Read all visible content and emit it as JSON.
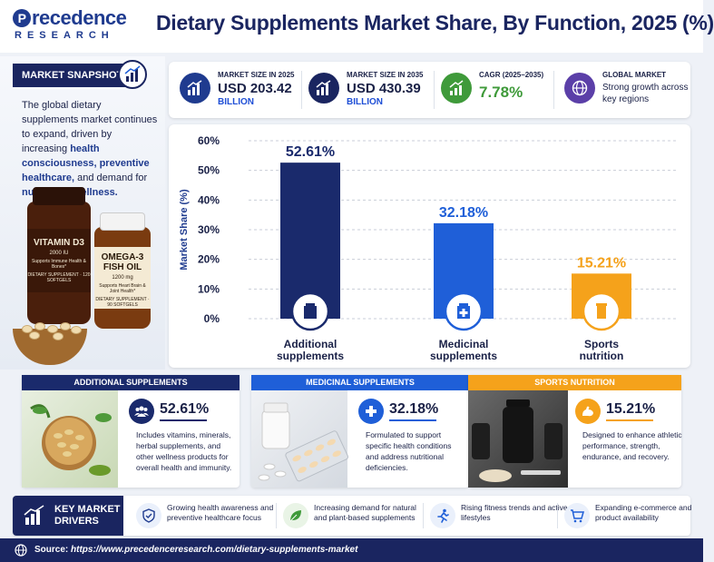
{
  "header": {
    "logo_main": "recedence",
    "logo_initial": "P",
    "logo_sub": "RESEARCH",
    "title": "Dietary Supplements Market Share, By Function, 2025 (%)"
  },
  "snapshot": {
    "heading": "MARKET SNAPSHOT",
    "text_1": "The global dietary supplements market continues to expand, driven by increasing ",
    "highlight_1": "health consciousness, preventive healthcare,",
    "text_2": " and demand for ",
    "highlight_2": "nutritional wellness.",
    "bottle_1": {
      "name": "VITAMIN D3",
      "dose": "2000 IU",
      "claim": "Supports Immune Health & Bones*",
      "info": "DIETARY SUPPLEMENT · 120 SOFTGELS"
    },
    "bottle_2": {
      "name": "OMEGA-3",
      "name_2": "FISH OIL",
      "dose": "1200 mg",
      "claim": "Supports Heart Brain & Joint Health*",
      "info": "DIETARY SUPPLEMENT · 90 SOFTGELS"
    }
  },
  "kpis": [
    {
      "label": "MARKET SIZE IN 2025",
      "value": "USD 203.42",
      "sub": "BILLION",
      "icon": "bar-growth-icon",
      "color": "#1f3b8f"
    },
    {
      "label": "MARKET SIZE IN 2035",
      "value": "USD 430.39",
      "sub": "BILLION",
      "icon": "bar-growth-icon",
      "color": "#1a2560"
    },
    {
      "label": "CAGR (2025–2035)",
      "value": "7.78%",
      "icon": "trend-up-icon",
      "color": "#3f9a3a"
    },
    {
      "label": "GLOBAL MARKET",
      "desc": "Strong growth across key regions",
      "icon": "globe-icon",
      "color": "#5b3fa8"
    }
  ],
  "chart_data": {
    "type": "bar",
    "categories": [
      "Additional supplements",
      "Medicinal supplements",
      "Sports nutrition"
    ],
    "category_lines": [
      [
        "Additional",
        "supplements"
      ],
      [
        "Medicinal",
        "supplements"
      ],
      [
        "Sports",
        "nutrition"
      ]
    ],
    "values": [
      52.61,
      32.18,
      15.21
    ],
    "value_labels": [
      "52.61%",
      "32.18%",
      "15.21%"
    ],
    "colors": [
      "#1a2a6c",
      "#1f5fd8",
      "#f5a21b"
    ],
    "ylabel": "Market Share (%)",
    "ylim": [
      0,
      60
    ],
    "yticks": [
      0,
      10,
      20,
      30,
      40,
      50,
      60
    ],
    "ytick_labels": [
      "0%",
      "10%",
      "20%",
      "30%",
      "40%",
      "50%",
      "60%"
    ],
    "grid": true,
    "icons": [
      "supplement-bottle-icon",
      "medicine-bottle-icon",
      "sports-nutrition-icon"
    ]
  },
  "cards": [
    {
      "title": "ADDITIONAL SUPPLEMENTS",
      "pct": "52.61%",
      "color": "#1a2a6c",
      "icon": "people-icon",
      "desc": "Includes vitamins, minerals, herbal supplements, and other wellness products for overall health and immunity."
    },
    {
      "title": "MEDICINAL SUPPLEMENTS",
      "pct": "32.18%",
      "color": "#1f5fd8",
      "icon": "medical-cross-icon",
      "desc": "Formulated to support specific health conditions and address nutritional deficiencies."
    },
    {
      "title": "SPORTS NUTRITION",
      "pct": "15.21%",
      "color": "#f5a21b",
      "icon": "muscle-icon",
      "desc": "Designed to enhance athletic performance, strength, endurance, and recovery."
    }
  ],
  "drivers": {
    "title_1": "KEY MARKET",
    "title_2": "DRIVERS",
    "items": [
      {
        "text": "Growing health awareness and preventive healthcare focus",
        "icon": "shield-check-icon",
        "color": "#1f3b8f"
      },
      {
        "text": "Increasing demand for natural and plant-based supplements",
        "icon": "leaf-icon",
        "color": "#3f9a3a"
      },
      {
        "text": "Rising fitness trends and active lifestyles",
        "icon": "runner-icon",
        "color": "#1f5fd8"
      },
      {
        "text": "Expanding e-commerce and product availability",
        "icon": "cart-icon",
        "color": "#1f5fd8"
      }
    ]
  },
  "footer": {
    "label": "Source: ",
    "url": "https://www.precedenceresearch.com/dietary-supplements-market"
  }
}
